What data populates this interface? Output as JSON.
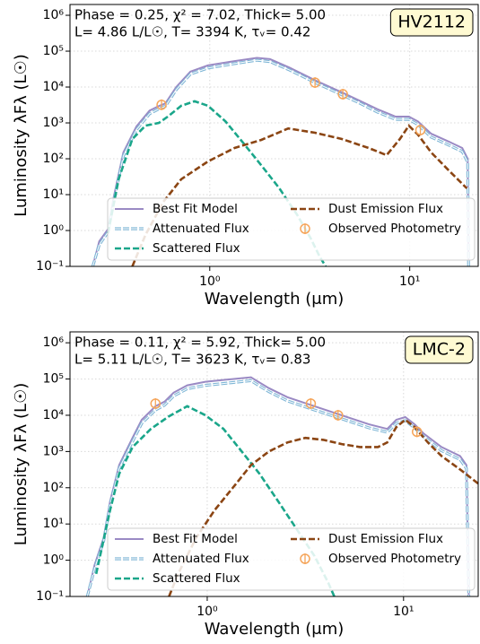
{
  "chart_data": [
    {
      "type": "line",
      "xscale": "log",
      "yscale": "log",
      "grid": true,
      "legend": "lower right",
      "xlabel": "Wavelength (μm)",
      "ylabel": "Luminosity λFλ (L☉)",
      "label": "HV2112",
      "annotation": [
        "Phase = 0.25, χ² =  7.02, Thick= 5.00",
        "L= 4.86 L/L☉, T= 3394 K, τᵥ= 0.42"
      ],
      "xlim": [
        0.2,
        22
      ],
      "ylim": [
        0.1,
        2000000
      ],
      "xticks": [
        {
          "value": 1,
          "label": "10⁰"
        },
        {
          "value": 10,
          "label": "10¹"
        }
      ],
      "yticks": [
        {
          "value": 0.1,
          "label": "10⁻¹"
        },
        {
          "value": 1,
          "label": "10⁰"
        },
        {
          "value": 10,
          "label": "10¹"
        },
        {
          "value": 100,
          "label": "10²"
        },
        {
          "value": 1000,
          "label": "10³"
        },
        {
          "value": 10000,
          "label": "10⁴"
        },
        {
          "value": 100000,
          "label": "10⁵"
        },
        {
          "value": 1000000,
          "label": "10⁶"
        }
      ],
      "series": [
        {
          "name": "Best Fit Model",
          "style": "solid",
          "color": "#9a8ac4",
          "x": [
            0.26,
            0.28,
            0.31,
            0.33,
            0.37,
            0.43,
            0.5,
            0.56,
            0.6,
            0.68,
            0.8,
            0.98,
            1.33,
            1.72,
            2.0,
            2.5,
            3.4,
            4.6,
            5.6,
            6.9,
            8.5,
            9.9,
            11,
            12.8,
            15.7,
            18.3,
            19.5,
            19.7
          ],
          "values": [
            0.1,
            0.5,
            1.1,
            8,
            150,
            800,
            2200,
            3000,
            3500,
            10000,
            27000,
            40000,
            53000,
            65000,
            60000,
            35000,
            15000,
            7000,
            4200,
            2400,
            1500,
            1500,
            1100,
            500,
            300,
            200,
            100,
            0.1
          ]
        },
        {
          "name": "Attenuated Flux",
          "style": "double-dashed",
          "color": "#7fb6d6",
          "x": [
            0.26,
            0.28,
            0.31,
            0.33,
            0.37,
            0.43,
            0.5,
            0.56,
            0.6,
            0.68,
            0.8,
            0.98,
            1.33,
            1.72,
            2.0,
            2.5,
            3.4,
            4.6,
            5.6,
            6.9,
            8.5,
            9.9,
            11,
            12.8,
            15.7,
            18.3,
            19.5,
            19.7
          ],
          "values": [
            0.1,
            0.4,
            0.9,
            6,
            120,
            650,
            1800,
            2500,
            2900,
            8500,
            23000,
            34000,
            45000,
            56000,
            51000,
            30000,
            13000,
            6000,
            3600,
            2000,
            1250,
            1250,
            900,
            400,
            240,
            160,
            80,
            0.1
          ]
        },
        {
          "name": "Scattered Flux",
          "style": "dashed",
          "color": "#1aa68a",
          "x": [
            0.31,
            0.35,
            0.41,
            0.477,
            0.557,
            0.617,
            0.72,
            0.84,
            0.98,
            1.2,
            1.48,
            1.82,
            2.23,
            2.74,
            3.2,
            3.54,
            3.8
          ],
          "values": [
            0.84,
            27,
            355,
            840,
            1000,
            1500,
            3000,
            4000,
            3000,
            1100,
            265,
            63,
            15,
            2.7,
            0.6,
            0.19,
            0.1
          ]
        },
        {
          "name": "Dust Emission Flux",
          "style": "dashed",
          "color": "#8b4513",
          "x": [
            0.41,
            0.477,
            0.586,
            0.72,
            0.98,
            1.33,
            1.81,
            2.47,
            3.36,
            4.58,
            6.23,
            7.66,
            8.93,
            9.9,
            11,
            12.8,
            15.7,
            19.3
          ],
          "values": [
            0.1,
            0.75,
            6.3,
            27,
            84,
            200,
            335,
            700,
            530,
            355,
            200,
            126,
            355,
            840,
            470,
            150,
            47,
            15
          ]
        },
        {
          "name": "Observed Photometry",
          "style": "markers",
          "color": "#f5a55a",
          "x": [
            0.574,
            3.36,
            4.63,
            11.3
          ],
          "values": [
            3200,
            13300,
            6300,
            630
          ]
        }
      ]
    },
    {
      "type": "line",
      "xscale": "log",
      "yscale": "log",
      "grid": true,
      "legend": "lower right",
      "xlabel": "Wavelength (μm)",
      "ylabel": "Luminosity λFλ (L☉)",
      "label": "LMC-2",
      "annotation": [
        "Phase = 0.11, χ² =  5.92, Thick= 5.00",
        "L= 5.11 L/L☉, T= 3623 K, τᵥ= 0.83"
      ],
      "xlim": [
        0.2,
        24
      ],
      "ylim": [
        0.1,
        2000000
      ],
      "xticks": [
        {
          "value": 1,
          "label": "10⁰"
        },
        {
          "value": 10,
          "label": "10¹"
        }
      ],
      "yticks": [
        {
          "value": 0.1,
          "label": "10⁻¹"
        },
        {
          "value": 1,
          "label": "10⁰"
        },
        {
          "value": 10,
          "label": "10¹"
        },
        {
          "value": 100,
          "label": "10²"
        },
        {
          "value": 1000,
          "label": "10³"
        },
        {
          "value": 10000,
          "label": "10⁴"
        },
        {
          "value": 100000,
          "label": "10⁵"
        },
        {
          "value": 1000000,
          "label": "10⁶"
        }
      ],
      "series": [
        {
          "name": "Best Fit Model",
          "style": "solid",
          "color": "#9a8ac4",
          "x": [
            0.245,
            0.267,
            0.297,
            0.32,
            0.356,
            0.417,
            0.464,
            0.545,
            0.606,
            0.674,
            0.791,
            0.98,
            1.35,
            1.67,
            2.06,
            2.56,
            3.52,
            4.84,
            6.67,
            8.26,
            9.18,
            10.2,
            11.4,
            12.6,
            15.6,
            19.4,
            20.9,
            21.5
          ],
          "values": [
            0.1,
            0.75,
            4.2,
            42,
            420,
            2400,
            7500,
            17800,
            23700,
            42000,
            67000,
            84000,
            100000,
            112000,
            56000,
            31600,
            17800,
            10000,
            5600,
            4200,
            7500,
            8900,
            5600,
            3200,
            1330,
            750,
            420,
            0.1
          ]
        },
        {
          "name": "Attenuated Flux",
          "style": "double-dashed",
          "color": "#7fb6d6",
          "x": [
            0.245,
            0.267,
            0.297,
            0.32,
            0.356,
            0.417,
            0.464,
            0.545,
            0.606,
            0.674,
            0.791,
            0.98,
            1.35,
            1.67,
            2.06,
            2.56,
            3.52,
            4.84,
            6.67,
            8.26,
            9.18,
            10.2,
            11.4,
            12.6,
            15.6,
            19.4,
            20.9,
            21.5
          ],
          "values": [
            0.1,
            0.6,
            3.4,
            34,
            340,
            1900,
            6000,
            14000,
            19000,
            34000,
            54000,
            67000,
            80000,
            90000,
            45000,
            25000,
            14000,
            8000,
            4500,
            3400,
            6000,
            7100,
            4500,
            2600,
            1060,
            600,
            340,
            0.1
          ]
        },
        {
          "name": "Scattered Flux",
          "style": "dashed",
          "color": "#1aa68a",
          "x": [
            0.272,
            0.32,
            0.356,
            0.417,
            0.516,
            0.639,
            0.791,
            0.98,
            1.21,
            1.5,
            1.85,
            2.3,
            2.84,
            3.52,
            4.13,
            4.44
          ],
          "values": [
            0.42,
            24,
            240,
            1330,
            4200,
            9400,
            17800,
            10000,
            4200,
            1000,
            240,
            42,
            7.5,
            1.3,
            0.24,
            0.1
          ]
        },
        {
          "name": "Dust Emission Flux",
          "style": "dashed",
          "color": "#8b4513",
          "x": [
            0.639,
            0.711,
            0.88,
            1.09,
            1.35,
            1.67,
            2.06,
            2.56,
            3.16,
            3.91,
            4.84,
            5.99,
            7.41,
            8.26,
            9.18,
            10.2,
            11.4,
            13.3,
            15.6,
            19.4,
            24
          ],
          "values": [
            0.1,
            0.42,
            4.2,
            24,
            100,
            420,
            1000,
            1780,
            2370,
            2100,
            1600,
            1330,
            1330,
            1780,
            4700,
            7500,
            4700,
            1780,
            750,
            320,
            130
          ]
        },
        {
          "name": "Observed Photometry",
          "style": "markers",
          "color": "#f5a55a",
          "x": [
            0.545,
            3.37,
            4.64,
            11.7
          ],
          "values": [
            21000,
            21000,
            10000,
            3500
          ]
        }
      ]
    }
  ]
}
